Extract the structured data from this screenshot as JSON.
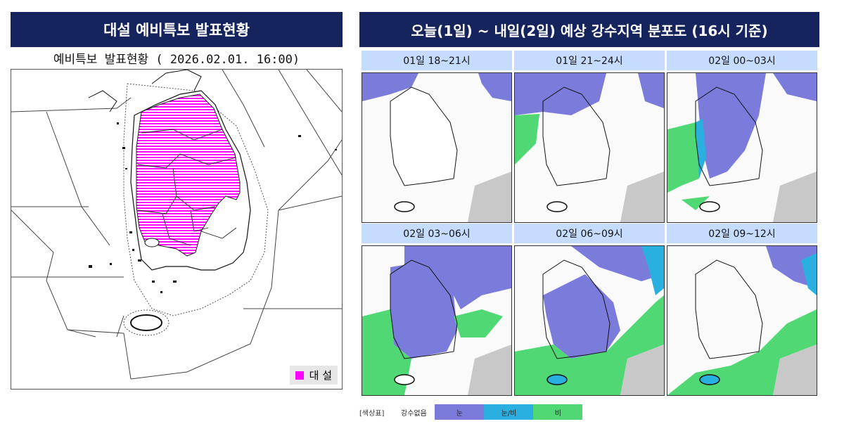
{
  "left": {
    "title": "대설 예비특보 발표현황",
    "subtitle": "예비특보 발표현황 ( 2026.02.01.  16:00)",
    "legend_label": "대 설",
    "legend_color": "#ff00ff"
  },
  "right": {
    "title": "오늘(1일) ~ 내일(2일) 예상 강수지역 분포도 (16시 기준)",
    "frames": [
      {
        "label": "01일 18~21시"
      },
      {
        "label": "01일 21~24시"
      },
      {
        "label": "02일 00~03시"
      },
      {
        "label": "02일 03~06시"
      },
      {
        "label": "02일 06~09시"
      },
      {
        "label": "02일 09~12시"
      }
    ],
    "legend": {
      "title": "[색상표]",
      "items": [
        {
          "label": "강수없음",
          "color": "#ffffff"
        },
        {
          "label": "눈",
          "color": "#7b7bdc"
        },
        {
          "label": "눈/비",
          "color": "#2ab0e0"
        },
        {
          "label": "비",
          "color": "#4fd873"
        }
      ]
    }
  },
  "colors": {
    "title_bg": "#15245c",
    "header_bg": "#c6dcff",
    "snow": "#7b7bdc",
    "sleet": "#2ab0e0",
    "rain": "#4fd873",
    "warning": "#ff00ff"
  }
}
